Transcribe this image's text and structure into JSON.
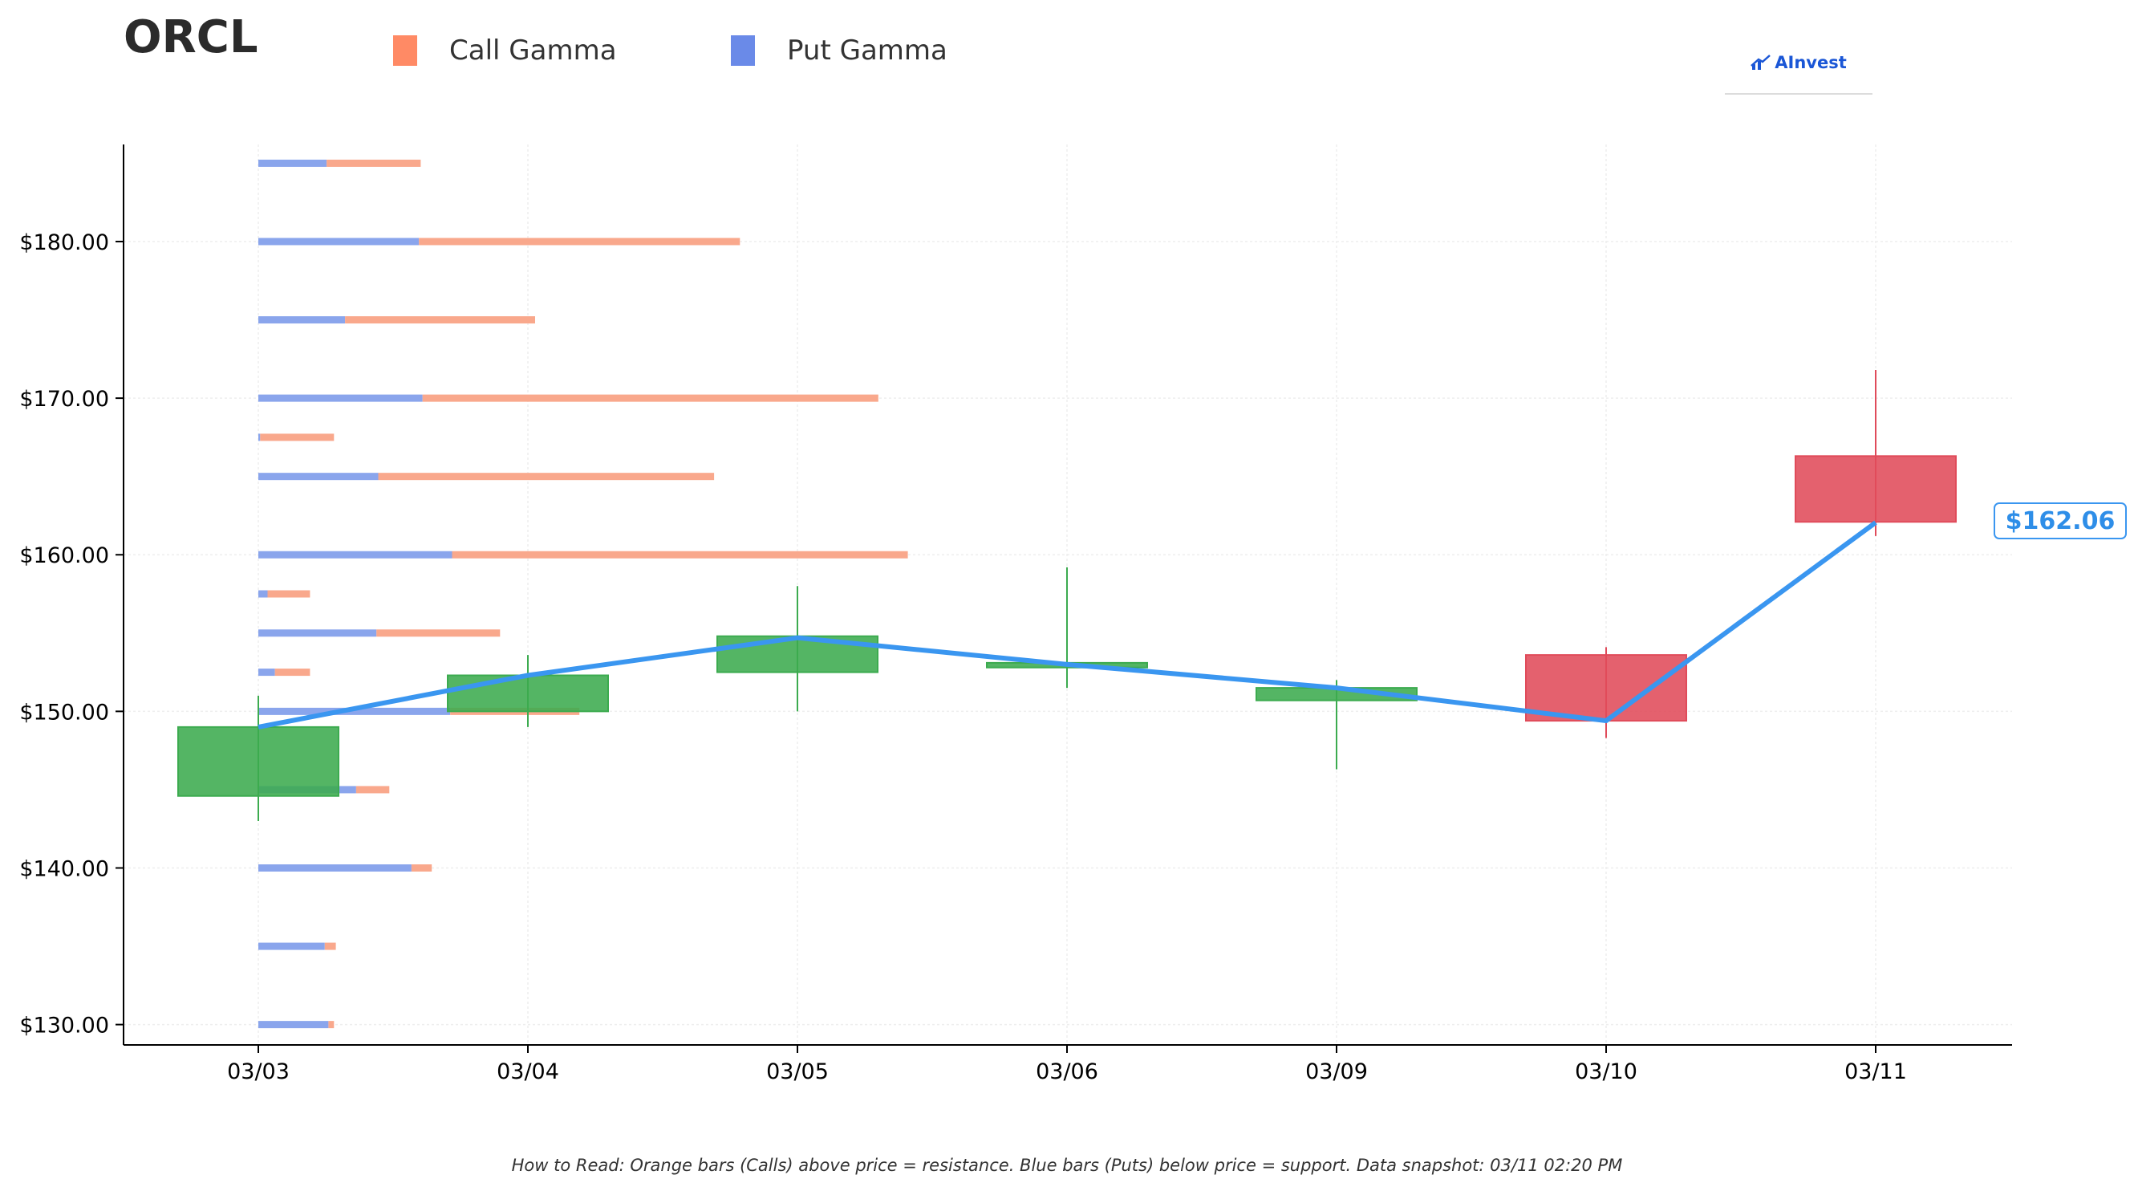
{
  "ticker": "ORCL",
  "legend": [
    {
      "label": "Call Gamma",
      "color": "#ff8a65"
    },
    {
      "label": "Put Gamma",
      "color": "#6a8ae8"
    }
  ],
  "brand": {
    "name": "AInvest",
    "color": "#1a56d6"
  },
  "footnote": "How to Read: Orange bars (Calls) above price = resistance. Blue bars (Puts) below price = support. Data snapshot: 03/11 02:20 PM",
  "chart_data": {
    "type": "candlestick",
    "categories": [
      "03/03",
      "03/04",
      "03/05",
      "03/06",
      "03/09",
      "03/10",
      "03/11"
    ],
    "candles": [
      {
        "date": "03/03",
        "open": 144.6,
        "high": 151.0,
        "low": 143.0,
        "close": 149.0
      },
      {
        "date": "03/04",
        "open": 150.0,
        "high": 153.6,
        "low": 149.0,
        "close": 152.3
      },
      {
        "date": "03/05",
        "open": 152.5,
        "high": 158.0,
        "low": 150.0,
        "close": 154.8
      },
      {
        "date": "03/06",
        "open": 152.8,
        "high": 159.2,
        "low": 151.5,
        "close": 153.1
      },
      {
        "date": "03/09",
        "open": 150.7,
        "high": 152.0,
        "low": 146.3,
        "close": 151.5
      },
      {
        "date": "03/10",
        "open": 153.6,
        "high": 154.1,
        "low": 148.3,
        "close": 149.4
      },
      {
        "date": "03/11",
        "open": 166.3,
        "high": 171.8,
        "low": 161.2,
        "close": 162.1
      }
    ],
    "price_line": [
      149.0,
      152.3,
      154.7,
      153.0,
      151.5,
      149.4,
      162.06
    ],
    "last_price_label": "$162.06",
    "gamma_levels": [
      {
        "strike": 185,
        "put": 37,
        "call": 51
      },
      {
        "strike": 180,
        "put": 87,
        "call": 174
      },
      {
        "strike": 175,
        "put": 47,
        "call": 103
      },
      {
        "strike": 170,
        "put": 89,
        "call": 247
      },
      {
        "strike": 167.5,
        "put": 1,
        "call": 40
      },
      {
        "strike": 165,
        "put": 65,
        "call": 182
      },
      {
        "strike": 160,
        "put": 105,
        "call": 247
      },
      {
        "strike": 157.5,
        "put": 5,
        "call": 23
      },
      {
        "strike": 155,
        "put": 64,
        "call": 67
      },
      {
        "strike": 152.5,
        "put": 9,
        "call": 19
      },
      {
        "strike": 150,
        "put": 104,
        "call": 70
      },
      {
        "strike": 145,
        "put": 53,
        "call": 18
      },
      {
        "strike": 140,
        "put": 83,
        "call": 11
      },
      {
        "strike": 135,
        "put": 36,
        "call": 6
      },
      {
        "strike": 130,
        "put": 38,
        "call": 3
      }
    ],
    "y_ticks": [
      "$130.00",
      "$140.00",
      "$150.00",
      "$160.00",
      "$170.00",
      "$180.00"
    ],
    "y_tick_values": [
      130,
      140,
      150,
      160,
      170,
      180
    ],
    "ylim": [
      128.7,
      186.2
    ],
    "colors": {
      "up": "#3cab4f",
      "down": "#e04b5a",
      "price_line": "#3a96f0",
      "call": "#f9a88c",
      "put": "#8aa5ec"
    },
    "grid": true
  }
}
